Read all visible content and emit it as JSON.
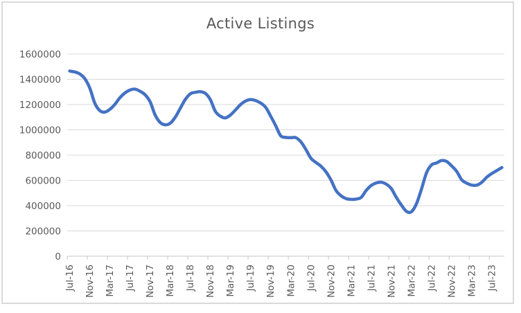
{
  "chart_data": {
    "type": "line",
    "title": "Active Listings",
    "series_name": "Active Listings",
    "smoothed": true,
    "grid": true,
    "legend": "none",
    "ylim": [
      0,
      1600000
    ],
    "y_tick_step": 200000,
    "y_tick_labels": [
      "0",
      "200000",
      "400000",
      "600000",
      "800000",
      "1000000",
      "1200000",
      "1400000",
      "1600000"
    ],
    "x_tick_interval": 4,
    "x_tick_labels": [
      "Jul-16",
      "Nov-16",
      "Mar-17",
      "Jul-17",
      "Nov-17",
      "Mar-18",
      "Jul-18",
      "Nov-18",
      "Mar-19",
      "Jul-19",
      "Nov-19",
      "Mar-20",
      "Jul-20",
      "Nov-20",
      "Mar-21",
      "Jul-21",
      "Nov-21",
      "Mar-22",
      "Jul-22",
      "Nov-22",
      "Mar-23",
      "Jul-23"
    ],
    "months": [
      "Jul-16",
      "Aug-16",
      "Sep-16",
      "Oct-16",
      "Nov-16",
      "Dec-16",
      "Jan-17",
      "Feb-17",
      "Mar-17",
      "Apr-17",
      "May-17",
      "Jun-17",
      "Jul-17",
      "Aug-17",
      "Sep-17",
      "Oct-17",
      "Nov-17",
      "Dec-17",
      "Jan-18",
      "Feb-18",
      "Mar-18",
      "Apr-18",
      "May-18",
      "Jun-18",
      "Jul-18",
      "Aug-18",
      "Sep-18",
      "Oct-18",
      "Nov-18",
      "Dec-18",
      "Jan-19",
      "Feb-19",
      "Mar-19",
      "Apr-19",
      "May-19",
      "Jun-19",
      "Jul-19",
      "Aug-19",
      "Sep-19",
      "Oct-19",
      "Nov-19",
      "Dec-19",
      "Jan-20",
      "Feb-20",
      "Mar-20",
      "Apr-20",
      "May-20",
      "Jun-20",
      "Jul-20",
      "Aug-20",
      "Sep-20",
      "Oct-20",
      "Nov-20",
      "Dec-20",
      "Jan-21",
      "Feb-21",
      "Mar-21",
      "Apr-21",
      "May-21",
      "Jun-21",
      "Jul-21",
      "Aug-21",
      "Sep-21",
      "Oct-21",
      "Nov-21",
      "Dec-21",
      "Jan-22",
      "Feb-22",
      "Mar-22",
      "Apr-22",
      "May-22",
      "Jun-22",
      "Jul-22",
      "Aug-22",
      "Sep-22",
      "Oct-22",
      "Nov-22",
      "Dec-22",
      "Jan-23",
      "Feb-23",
      "Mar-23",
      "Apr-23",
      "May-23",
      "Jun-23",
      "Jul-23",
      "Aug-23",
      "Sep-23"
    ],
    "values": [
      1465000,
      1458000,
      1442000,
      1405000,
      1330000,
      1210000,
      1152000,
      1140000,
      1162000,
      1202000,
      1255000,
      1292000,
      1315000,
      1322000,
      1305000,
      1278000,
      1222000,
      1118000,
      1058000,
      1040000,
      1052000,
      1100000,
      1170000,
      1240000,
      1285000,
      1297000,
      1302000,
      1288000,
      1238000,
      1145000,
      1108000,
      1095000,
      1118000,
      1158000,
      1200000,
      1228000,
      1240000,
      1232000,
      1212000,
      1178000,
      1108000,
      1032000,
      953000,
      940000,
      938000,
      938000,
      905000,
      845000,
      775000,
      742000,
      712000,
      668000,
      602000,
      520000,
      478000,
      456000,
      450000,
      452000,
      465000,
      520000,
      560000,
      580000,
      585000,
      570000,
      535000,
      465000,
      405000,
      355000,
      352000,
      415000,
      530000,
      660000,
      722000,
      738000,
      757000,
      750000,
      715000,
      672000,
      605000,
      578000,
      563000,
      562000,
      585000,
      625000,
      655000,
      678000,
      702000
    ],
    "colors": {
      "line": "#4472C4",
      "gridline": "#D9D9D9",
      "axis": "#C6C6C6",
      "labels": "#595959",
      "title": "#595959",
      "frame": "#D9D9D9",
      "background": "#FFFFFF"
    }
  }
}
